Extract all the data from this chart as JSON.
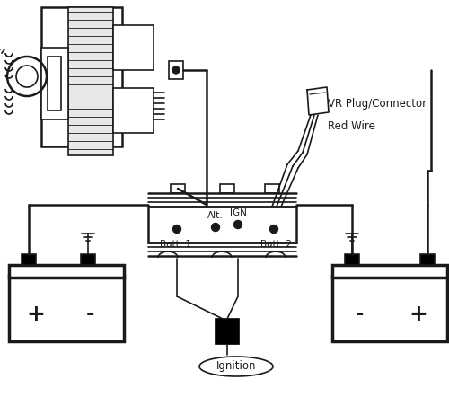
{
  "bg_color": "#ffffff",
  "line_color": "#1a1a1a",
  "labels": {
    "vr_plug": "VR Plug/Connector",
    "red_wire": "Red Wire",
    "batt1": "Batt. 1",
    "batt2": "Batt. 2",
    "alt": "Alt.",
    "ign": "IGN",
    "ignition": "Ignition",
    "plus": "+",
    "minus": "-"
  },
  "font_size": 8.5
}
